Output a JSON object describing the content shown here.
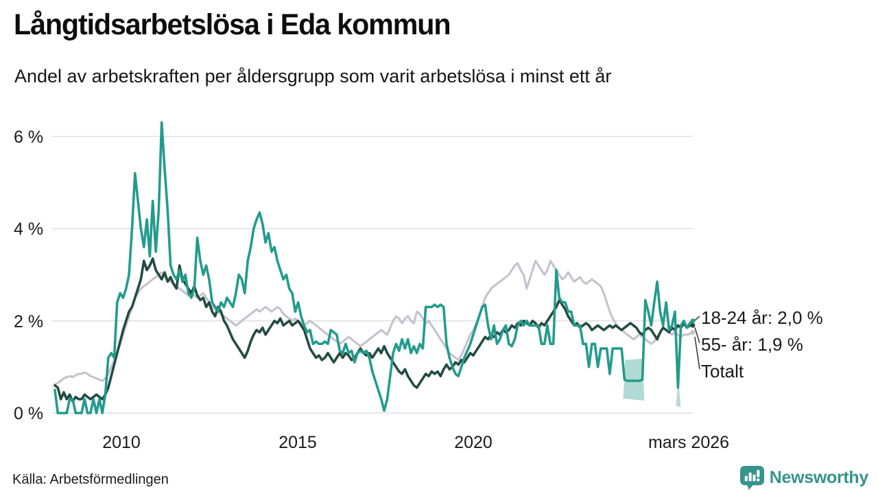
{
  "header": {
    "title": "Långtidsarbetslösa i Eda kommun",
    "subtitle": "Andel av arbetskraften per åldersgrupp som varit arbetslösa i minst ett år"
  },
  "footer": {
    "source": "Källa: Arbetsförmedlingen",
    "brand": "Newsworthy"
  },
  "colors": {
    "young": "#239b8c",
    "old": "#234b41",
    "total": "#c4c2cf",
    "band": "#a9d6cf",
    "grid": "#e2e2e2",
    "leader": "#333333",
    "brand": "#35948c"
  },
  "chart_data": {
    "type": "line",
    "title": "Långtidsarbetslösa i Eda kommun",
    "subtitle": "Andel av arbetskraften per åldersgrupp som varit arbetslösa i minst ett år",
    "unit": "% av arbetskraften",
    "frequency": "monthly",
    "x_start": "2008-04",
    "x_end": "2026-03",
    "ylim": [
      0,
      6.5
    ],
    "grid": true,
    "yticks": [
      {
        "v": 0,
        "label": "0 %"
      },
      {
        "v": 2,
        "label": "2 %"
      },
      {
        "v": 4,
        "label": "4 %"
      },
      {
        "v": 6,
        "label": "6 %"
      }
    ],
    "xticks": [
      {
        "label": "2010"
      },
      {
        "label": "2015"
      },
      {
        "label": "2020"
      },
      {
        "label": "mars 2026"
      }
    ],
    "series": [
      {
        "name": "18-24 år",
        "color_key": "young",
        "end_label": "18-24 år: 2,0 %",
        "end_value": 2.0,
        "values": [
          0.5,
          0,
          0,
          0,
          0,
          0.3,
          0.3,
          0,
          0,
          0,
          0.3,
          0,
          0,
          0.3,
          0,
          0.3,
          0,
          0.4,
          1.2,
          1.3,
          1.2,
          2.4,
          2.6,
          2.5,
          2.7,
          3.0,
          4.0,
          5.2,
          4.6,
          4.0,
          3.6,
          4.2,
          3.4,
          4.6,
          3.5,
          4.4,
          6.3,
          5.3,
          4.4,
          3.2,
          3.0,
          2.9,
          3.1,
          2.85,
          3.0,
          2.6,
          2.5,
          2.7,
          3.8,
          3.3,
          3.0,
          3.2,
          2.9,
          2.4,
          2.3,
          2.2,
          2.4,
          2.3,
          2.5,
          2.4,
          2.3,
          2.6,
          3.0,
          2.9,
          2.6,
          3.3,
          3.6,
          4.0,
          4.2,
          4.35,
          4.1,
          3.7,
          3.9,
          3.5,
          3.6,
          3.3,
          3.1,
          2.9,
          3.0,
          2.7,
          2.6,
          2.2,
          2.4,
          2.1,
          1.9,
          1.75,
          1.8,
          1.5,
          1.55,
          1.5,
          1.5,
          1.55,
          1.5,
          1.8,
          1.75,
          1.7,
          1.35,
          1.3,
          1.5,
          1.3,
          1.35,
          1.1,
          1.3,
          1.35,
          1.3,
          1.35,
          1.2,
          0.9,
          0.7,
          0.5,
          0.3,
          0.05,
          0.3,
          0.8,
          1.3,
          1.5,
          1.35,
          1.6,
          1.4,
          1.6,
          1.3,
          1.45,
          1.3,
          1.5,
          1.4,
          2.3,
          2.3,
          2.3,
          2.35,
          2.3,
          2.35,
          2.3,
          1.5,
          1.2,
          1.0,
          0.85,
          0.8,
          1.0,
          1.2,
          1.35,
          1.5,
          1.7,
          1.9,
          2.1,
          2.3,
          2.35,
          1.9,
          1.6,
          1.9,
          1.5,
          1.6,
          1.8,
          1.9,
          1.5,
          1.45,
          1.6,
          1.9,
          2.0,
          1.9,
          2.0,
          1.9,
          1.9,
          1.9,
          1.9,
          1.5,
          1.5,
          1.9,
          1.5,
          1.5,
          3.1,
          2.5,
          2.4,
          2.4,
          2.2,
          2.2,
          1.9,
          1.9,
          1.9,
          1.5,
          1.5,
          1.0,
          1.5,
          1.5,
          1.0,
          1.4,
          1.4,
          1.4,
          0.85,
          1.4,
          1.4,
          1.4,
          1.4,
          0.72,
          0.7,
          0.7,
          0.7,
          0.7,
          0.7,
          0.72,
          2.45,
          2.2,
          1.9,
          2.4,
          2.85,
          2.2,
          1.9,
          2.4,
          1.8,
          1.9,
          2.2,
          0.55,
          1.9,
          2.0,
          1.85,
          1.95,
          2.0
        ]
      },
      {
        "name": "55- år",
        "color_key": "old",
        "end_label": "55- år: 1,9 %",
        "end_value": 1.9,
        "values": [
          0.6,
          0.55,
          0.3,
          0.45,
          0.3,
          0.4,
          0.25,
          0.35,
          0.3,
          0.3,
          0.4,
          0.35,
          0.3,
          0.35,
          0.4,
          0.35,
          0.3,
          0.4,
          0.55,
          0.8,
          1.05,
          1.3,
          1.55,
          1.8,
          2.0,
          2.2,
          2.3,
          2.5,
          2.7,
          2.9,
          3.3,
          3.1,
          3.2,
          3.35,
          3.1,
          3.0,
          2.9,
          3.05,
          2.85,
          2.95,
          2.8,
          2.7,
          3.2,
          2.9,
          2.8,
          2.7,
          2.6,
          2.75,
          2.55,
          2.45,
          2.5,
          2.3,
          2.4,
          2.2,
          2.1,
          2.3,
          2.2,
          2.0,
          1.9,
          1.75,
          1.6,
          1.5,
          1.4,
          1.3,
          1.2,
          1.35,
          1.55,
          1.7,
          1.8,
          1.75,
          1.85,
          1.7,
          1.8,
          1.9,
          2.0,
          1.95,
          2.05,
          1.9,
          1.95,
          2.0,
          1.9,
          1.95,
          2.0,
          1.9,
          1.8,
          1.6,
          1.4,
          1.3,
          1.2,
          1.25,
          1.15,
          1.2,
          1.3,
          1.2,
          1.1,
          1.2,
          1.3,
          1.2,
          1.3,
          1.25,
          1.15,
          1.2,
          1.3,
          1.4,
          1.3,
          1.25,
          1.3,
          1.2,
          1.3,
          1.4,
          1.3,
          1.45,
          1.3,
          1.2,
          1.1,
          1.0,
          0.9,
          0.85,
          0.95,
          0.8,
          0.7,
          0.6,
          0.55,
          0.65,
          0.75,
          0.85,
          0.8,
          0.9,
          0.85,
          0.9,
          0.8,
          0.95,
          1.05,
          0.95,
          1.0,
          1.1,
          1.05,
          1.15,
          1.1,
          1.2,
          1.3,
          1.25,
          1.35,
          1.45,
          1.55,
          1.65,
          1.6,
          1.7,
          1.65,
          1.75,
          1.7,
          1.8,
          1.75,
          1.8,
          1.9,
          1.85,
          1.95,
          1.9,
          2.0,
          1.95,
          1.9,
          2.0,
          1.95,
          1.85,
          1.95,
          1.9,
          2.0,
          2.1,
          2.2,
          2.3,
          2.45,
          2.35,
          2.25,
          2.1,
          2.0,
          1.9,
          1.95,
          1.85,
          1.9,
          1.95,
          1.9,
          1.8,
          1.85,
          1.9,
          1.85,
          1.8,
          1.85,
          1.9,
          1.85,
          1.9,
          1.85,
          1.8,
          1.85,
          1.9,
          1.95,
          1.9,
          1.85,
          1.75,
          1.7,
          1.8,
          1.85,
          1.8,
          1.7,
          1.6,
          1.75,
          1.85,
          1.8,
          1.75,
          1.85,
          1.8,
          1.9,
          1.85,
          1.95,
          1.85,
          1.9,
          1.9
        ]
      },
      {
        "name": "Totalt",
        "color_key": "total",
        "end_label": "Totalt",
        "end_value": 1.75,
        "values": [
          0.62,
          0.65,
          0.7,
          0.75,
          0.78,
          0.8,
          0.78,
          0.82,
          0.85,
          0.85,
          0.88,
          0.85,
          0.8,
          0.78,
          0.75,
          0.72,
          0.7,
          0.75,
          0.85,
          1.0,
          1.15,
          1.3,
          1.5,
          1.7,
          1.9,
          2.1,
          2.3,
          2.5,
          2.6,
          2.7,
          2.75,
          2.8,
          2.85,
          2.9,
          2.95,
          3.0,
          3.05,
          2.95,
          2.9,
          2.85,
          2.8,
          2.75,
          2.7,
          2.65,
          2.6,
          2.55,
          2.6,
          2.55,
          2.5,
          2.55,
          2.6,
          2.5,
          2.4,
          2.3,
          2.25,
          2.2,
          2.15,
          2.1,
          2.05,
          2.0,
          1.95,
          1.9,
          1.95,
          2.0,
          2.05,
          2.1,
          2.15,
          2.2,
          2.25,
          2.2,
          2.25,
          2.3,
          2.25,
          2.2,
          2.25,
          2.3,
          2.25,
          2.15,
          2.1,
          2.05,
          2.0,
          2.05,
          2.0,
          1.95,
          1.9,
          1.95,
          2.0,
          1.95,
          1.9,
          1.85,
          1.8,
          1.75,
          1.7,
          1.65,
          1.6,
          1.55,
          1.5,
          1.55,
          1.6,
          1.65,
          1.6,
          1.55,
          1.5,
          1.45,
          1.5,
          1.55,
          1.6,
          1.65,
          1.7,
          1.75,
          1.8,
          1.75,
          1.7,
          1.85,
          2.0,
          2.1,
          2.05,
          1.95,
          2.05,
          2.1,
          2.0,
          1.95,
          2.2,
          2.15,
          2.05,
          1.95,
          2.0,
          1.9,
          1.8,
          1.7,
          1.6,
          1.5,
          1.4,
          1.3,
          1.25,
          1.2,
          1.15,
          1.25,
          1.4,
          1.55,
          1.7,
          1.8,
          1.95,
          2.1,
          2.3,
          2.5,
          2.6,
          2.7,
          2.75,
          2.8,
          2.85,
          2.9,
          2.95,
          3.0,
          3.1,
          3.2,
          3.25,
          3.1,
          3.0,
          2.7,
          2.9,
          3.1,
          3.3,
          3.2,
          3.1,
          3.0,
          3.1,
          3.3,
          3.2,
          3.1,
          3.0,
          2.9,
          2.95,
          3.05,
          2.95,
          2.85,
          2.9,
          2.95,
          2.85,
          2.8,
          2.85,
          2.9,
          2.85,
          2.8,
          2.75,
          2.6,
          2.4,
          2.2,
          2.05,
          1.95,
          1.85,
          1.8,
          1.75,
          1.7,
          1.65,
          1.6,
          1.65,
          1.7,
          1.65,
          1.6,
          1.55,
          1.5,
          1.55,
          1.65,
          1.75,
          1.85,
          1.8,
          1.75,
          1.7,
          1.75,
          1.7,
          1.65,
          1.7,
          1.7,
          1.72,
          1.75
        ]
      }
    ],
    "bands": [
      {
        "series": "18-24 år",
        "from_index": 192,
        "to_index": 198,
        "low": 0.27,
        "high": 1.15
      },
      {
        "series": "18-24 år",
        "from_index": 209.8,
        "to_index": 210.25,
        "low": 0.12,
        "high": 0.6
      }
    ],
    "legend_position": "right-of-line-ends",
    "source": "Källa: Arbetsförmedlingen"
  }
}
